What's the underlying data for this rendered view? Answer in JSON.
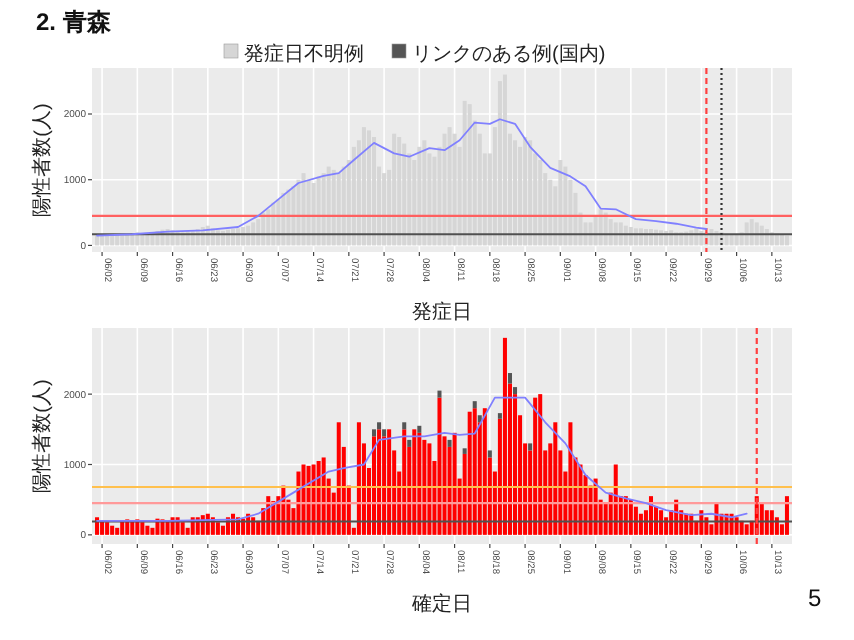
{
  "chart_data": [
    {
      "type": "bar",
      "title": "2. 青森",
      "xlabel": "発症日",
      "ylabel": "陽性者数(人)",
      "legend": "top",
      "grid": true,
      "x": [
        "--06-01",
        "--06-02",
        "--06-03",
        "--06-04",
        "--06-05",
        "--06-06",
        "--06-07",
        "--06-08",
        "--06-09",
        "--06-10",
        "--06-11",
        "--06-12",
        "--06-13",
        "--06-14",
        "--06-15",
        "--06-16",
        "--06-17",
        "--06-18",
        "--06-19",
        "--06-20",
        "--06-21",
        "--06-22",
        "--06-23",
        "--06-24",
        "--06-25",
        "--06-26",
        "--06-27",
        "--06-28",
        "--06-29",
        "--06-30",
        "--07-01",
        "--07-02",
        "--07-03",
        "--07-04",
        "--07-05",
        "--07-06",
        "--07-07",
        "--07-08",
        "--07-09",
        "--07-10",
        "--07-11",
        "--07-12",
        "--07-13",
        "--07-14",
        "--07-15",
        "--07-16",
        "--07-17",
        "--07-18",
        "--07-19",
        "--07-20",
        "--07-21",
        "--07-22",
        "--07-23",
        "--07-24",
        "--07-25",
        "--07-26",
        "--07-27",
        "--07-28",
        "--07-29",
        "--07-30",
        "--07-31",
        "--08-01",
        "--08-02",
        "--08-03",
        "--08-04",
        "--08-05",
        "--08-06",
        "--08-07",
        "--08-08",
        "--08-09",
        "--08-10",
        "--08-11",
        "--08-12",
        "--08-13",
        "--08-14",
        "--08-15",
        "--08-16",
        "--08-17",
        "--08-18",
        "--08-19",
        "--08-20",
        "--08-21",
        "--08-22",
        "--08-23",
        "--08-24",
        "--08-25",
        "--08-26",
        "--08-27",
        "--08-28",
        "--08-29",
        "--08-30",
        "--08-31",
        "--09-01",
        "--09-02",
        "--09-03",
        "--09-04",
        "--09-05",
        "--09-06",
        "--09-07",
        "--09-08",
        "--09-09",
        "--09-10",
        "--09-11",
        "--09-12",
        "--09-13",
        "--09-14",
        "--09-15",
        "--09-16",
        "--09-17",
        "--09-18",
        "--09-19",
        "--09-20",
        "--09-21",
        "--09-22",
        "--09-23",
        "--09-24",
        "--09-25",
        "--09-26",
        "--09-27",
        "--09-28",
        "--09-29",
        "--09-30",
        "--10-01",
        "--10-02",
        "--10-03",
        "--10-04",
        "--10-05",
        "--10-06",
        "--10-07",
        "--10-08",
        "--10-09",
        "--10-10",
        "--10-11",
        "--10-12",
        "--10-13",
        "--10-14",
        "--10-15",
        "--10-16"
      ],
      "series": [
        {
          "name": "発症日不明例",
          "color": "#d6d6d6",
          "values": [
            150,
            170,
            160,
            180,
            170,
            150,
            160,
            180,
            200,
            170,
            180,
            200,
            220,
            240,
            250,
            230,
            210,
            200,
            220,
            230,
            250,
            280,
            300,
            260,
            230,
            220,
            240,
            250,
            260,
            280,
            300,
            350,
            400,
            500,
            550,
            650,
            700,
            800,
            850,
            900,
            1000,
            1100,
            1000,
            950,
            1050,
            1100,
            1200,
            1150,
            1100,
            1200,
            1300,
            1500,
            1600,
            1800,
            1750,
            1650,
            1200,
            1100,
            1150,
            1700,
            1650,
            1550,
            1400,
            1300,
            1500,
            1600,
            1400,
            1350,
            1500,
            1700,
            1800,
            1700,
            1500,
            2200,
            2150,
            1900,
            1700,
            1400,
            1400,
            1800,
            2500,
            2600,
            1700,
            1600,
            1500,
            1650,
            1600,
            1400,
            1300,
            1100,
            1000,
            900,
            1300,
            1200,
            1000,
            800,
            500,
            350,
            350,
            450,
            550,
            500,
            400,
            350,
            350,
            300,
            280,
            260,
            260,
            250,
            250,
            240,
            230,
            220,
            230,
            200,
            200,
            210,
            230,
            260,
            220,
            200,
            250,
            220,
            200,
            180,
            160,
            170,
            200,
            350,
            400,
            350,
            300,
            250,
            200,
            180,
            160,
            150
          ]
        },
        {
          "type": "line",
          "color": "#8080ff",
          "x": [
            "--06-01",
            "--06-08",
            "--06-15",
            "--06-22",
            "--06-29",
            "--07-03",
            "--07-07",
            "--07-11",
            "--07-16",
            "--07-19",
            "--07-22",
            "--07-26",
            "--07-30",
            "--08-02",
            "--08-06",
            "--08-09",
            "--08-12",
            "--08-15",
            "--08-18",
            "--08-20",
            "--08-23",
            "--08-26",
            "--08-30",
            "--09-03",
            "--09-06",
            "--09-09",
            "--09-12",
            "--09-16",
            "--09-20",
            "--09-24",
            "--09-28",
            "--09-30"
          ],
          "values": [
            150,
            170,
            210,
            230,
            280,
            450,
            700,
            950,
            1060,
            1100,
            1300,
            1560,
            1400,
            1350,
            1480,
            1450,
            1600,
            1870,
            1850,
            1920,
            1850,
            1500,
            1180,
            1050,
            900,
            560,
            550,
            400,
            370,
            330,
            270,
            250
          ]
        }
      ],
      "xlim": [
        "--05-31",
        "--10-17"
      ],
      "xticks": [
        {
          "value": "--06-02",
          "label": "06/02"
        },
        {
          "value": "--06-09",
          "label": "06/09"
        },
        {
          "value": "--06-16",
          "label": "06/16"
        },
        {
          "value": "--06-23",
          "label": "06/23"
        },
        {
          "value": "--06-30",
          "label": "06/30"
        },
        {
          "value": "--07-07",
          "label": "07/07"
        },
        {
          "value": "--07-14",
          "label": "07/14"
        },
        {
          "value": "--07-21",
          "label": "07/21"
        },
        {
          "value": "--07-28",
          "label": "07/28"
        },
        {
          "value": "--08-04",
          "label": "08/04"
        },
        {
          "value": "--08-11",
          "label": "08/11"
        },
        {
          "value": "--08-18",
          "label": "08/18"
        },
        {
          "value": "--08-25",
          "label": "08/25"
        },
        {
          "value": "--09-01",
          "label": "09/01"
        },
        {
          "value": "--09-08",
          "label": "09/08"
        },
        {
          "value": "--09-15",
          "label": "09/15"
        },
        {
          "value": "--09-22",
          "label": "09/22"
        },
        {
          "value": "--09-29",
          "label": "09/29"
        },
        {
          "value": "--10-06",
          "label": "10/06"
        },
        {
          "value": "--10-13",
          "label": "10/13"
        }
      ],
      "ylim": [
        -100,
        2700
      ],
      "yticks": [
        0,
        1000,
        2000
      ],
      "ref_lines": [
        {
          "axis": "y",
          "value": 450,
          "color": "#ff6060"
        },
        {
          "axis": "y",
          "value": 170,
          "color": "#505050"
        },
        {
          "axis": "x",
          "value": "--09-30",
          "color": "#ff4040",
          "line_style": "dashed"
        },
        {
          "axis": "x",
          "value": "--10-03",
          "color": "#333333",
          "line_style": "dotted"
        }
      ]
    },
    {
      "type": "bar",
      "stacked": true,
      "xlabel": "確定日",
      "ylabel": "陽性者数(人)",
      "grid": true,
      "x": [
        "--06-01",
        "--06-02",
        "--06-03",
        "--06-04",
        "--06-05",
        "--06-06",
        "--06-07",
        "--06-08",
        "--06-09",
        "--06-10",
        "--06-11",
        "--06-12",
        "--06-13",
        "--06-14",
        "--06-15",
        "--06-16",
        "--06-17",
        "--06-18",
        "--06-19",
        "--06-20",
        "--06-21",
        "--06-22",
        "--06-23",
        "--06-24",
        "--06-25",
        "--06-26",
        "--06-27",
        "--06-28",
        "--06-29",
        "--06-30",
        "--07-01",
        "--07-02",
        "--07-03",
        "--07-04",
        "--07-05",
        "--07-06",
        "--07-07",
        "--07-08",
        "--07-09",
        "--07-10",
        "--07-11",
        "--07-12",
        "--07-13",
        "--07-14",
        "--07-15",
        "--07-16",
        "--07-17",
        "--07-18",
        "--07-19",
        "--07-20",
        "--07-21",
        "--07-22",
        "--07-23",
        "--07-24",
        "--07-25",
        "--07-26",
        "--07-27",
        "--07-28",
        "--07-29",
        "--07-30",
        "--07-31",
        "--08-01",
        "--08-02",
        "--08-03",
        "--08-04",
        "--08-05",
        "--08-06",
        "--08-07",
        "--08-08",
        "--08-09",
        "--08-10",
        "--08-11",
        "--08-12",
        "--08-13",
        "--08-14",
        "--08-15",
        "--08-16",
        "--08-17",
        "--08-18",
        "--08-19",
        "--08-20",
        "--08-21",
        "--08-22",
        "--08-23",
        "--08-24",
        "--08-25",
        "--08-26",
        "--08-27",
        "--08-28",
        "--08-29",
        "--08-30",
        "--08-31",
        "--09-01",
        "--09-02",
        "--09-03",
        "--09-04",
        "--09-05",
        "--09-06",
        "--09-07",
        "--09-08",
        "--09-09",
        "--09-10",
        "--09-11",
        "--09-12",
        "--09-13",
        "--09-14",
        "--09-15",
        "--09-16",
        "--09-17",
        "--09-18",
        "--09-19",
        "--09-20",
        "--09-21",
        "--09-22",
        "--09-23",
        "--09-24",
        "--09-25",
        "--09-26",
        "--09-27",
        "--09-28",
        "--09-29",
        "--09-30",
        "--10-01",
        "--10-02",
        "--10-03",
        "--10-04",
        "--10-05",
        "--10-06",
        "--10-07",
        "--10-08",
        "--10-09",
        "--10-10",
        "--10-11",
        "--10-12",
        "--10-13",
        "--10-14",
        "--10-15",
        "--10-16"
      ],
      "series": [
        {
          "color": "#ff0000",
          "values": [
            250,
            200,
            180,
            130,
            100,
            200,
            220,
            200,
            220,
            180,
            130,
            100,
            230,
            220,
            200,
            250,
            250,
            180,
            100,
            250,
            250,
            280,
            300,
            250,
            180,
            130,
            250,
            300,
            250,
            230,
            300,
            250,
            200,
            380,
            550,
            480,
            550,
            700,
            500,
            380,
            900,
            1000,
            980,
            1000,
            1050,
            1100,
            800,
            600,
            1600,
            1250,
            700,
            100,
            1600,
            1300,
            950,
            1400,
            1500,
            1400,
            1500,
            1200,
            900,
            1500,
            1250,
            1500,
            1450,
            1350,
            1300,
            1050,
            1950,
            1400,
            1250,
            1450,
            800,
            1150,
            1750,
            1800,
            1600,
            1800,
            1100,
            900,
            1650,
            2800,
            2150,
            2000,
            1700,
            1300,
            1200,
            1950,
            2000,
            1200,
            1300,
            1600,
            1200,
            900,
            1600,
            1100,
            1000,
            850,
            700,
            800,
            500,
            450,
            600,
            1000,
            550,
            550,
            500,
            400,
            300,
            350,
            550,
            400,
            350,
            250,
            350,
            500,
            350,
            300,
            300,
            200,
            350,
            250,
            150,
            450,
            300,
            300,
            300,
            250,
            200,
            150,
            200,
            550,
            450,
            350,
            350,
            250,
            150,
            550
          ]
        },
        {
          "name": "リンクのある例(国内)",
          "color": "#555555",
          "values": [
            0,
            0,
            0,
            0,
            0,
            0,
            0,
            0,
            0,
            0,
            0,
            0,
            0,
            0,
            0,
            0,
            0,
            0,
            0,
            0,
            0,
            0,
            0,
            0,
            0,
            0,
            0,
            0,
            0,
            0,
            0,
            0,
            0,
            0,
            0,
            0,
            0,
            0,
            0,
            0,
            0,
            0,
            0,
            0,
            0,
            0,
            0,
            0,
            0,
            0,
            0,
            0,
            0,
            0,
            0,
            100,
            100,
            100,
            0,
            0,
            0,
            100,
            100,
            0,
            100,
            0,
            0,
            0,
            100,
            0,
            100,
            0,
            0,
            80,
            0,
            100,
            100,
            0,
            100,
            0,
            80,
            0,
            150,
            100,
            0,
            0,
            100,
            0,
            0,
            0,
            0,
            0,
            0,
            0,
            0,
            0,
            0,
            0,
            0,
            0,
            0,
            0,
            0,
            0,
            0,
            0,
            0,
            0,
            0,
            0,
            0,
            0,
            0,
            0,
            0,
            0,
            0,
            0,
            0,
            0,
            0,
            0,
            0,
            0,
            0,
            0,
            0,
            0,
            0,
            0,
            0,
            0,
            0,
            0,
            0,
            0,
            0,
            0
          ]
        },
        {
          "type": "line",
          "color": "#8080ff",
          "x": [
            "--06-01",
            "--06-15",
            "--06-29",
            "--07-03",
            "--07-10",
            "--07-17",
            "--07-20",
            "--07-24",
            "--07-27",
            "--08-01",
            "--08-05",
            "--08-09",
            "--08-12",
            "--08-15",
            "--08-19",
            "--08-22",
            "--08-25",
            "--08-29",
            "--09-02",
            "--09-06",
            "--09-10",
            "--09-14",
            "--09-18",
            "--09-22",
            "--09-27",
            "--10-01",
            "--10-05",
            "--10-08"
          ],
          "values": [
            200,
            200,
            220,
            300,
            600,
            900,
            950,
            1000,
            1350,
            1400,
            1400,
            1450,
            1420,
            1440,
            1950,
            1950,
            1950,
            1600,
            1300,
            850,
            600,
            520,
            450,
            350,
            280,
            300,
            250,
            300
          ]
        }
      ],
      "xlim": [
        "--05-31",
        "--10-17"
      ],
      "xticks": [
        {
          "value": "--06-02",
          "label": "06/02"
        },
        {
          "value": "--06-09",
          "label": "06/09"
        },
        {
          "value": "--06-16",
          "label": "06/16"
        },
        {
          "value": "--06-23",
          "label": "06/23"
        },
        {
          "value": "--06-30",
          "label": "06/30"
        },
        {
          "value": "--07-07",
          "label": "07/07"
        },
        {
          "value": "--07-14",
          "label": "07/14"
        },
        {
          "value": "--07-21",
          "label": "07/21"
        },
        {
          "value": "--07-28",
          "label": "07/28"
        },
        {
          "value": "--08-04",
          "label": "08/04"
        },
        {
          "value": "--08-11",
          "label": "08/11"
        },
        {
          "value": "--08-18",
          "label": "08/18"
        },
        {
          "value": "--08-25",
          "label": "08/25"
        },
        {
          "value": "--09-01",
          "label": "09/01"
        },
        {
          "value": "--09-08",
          "label": "09/08"
        },
        {
          "value": "--09-15",
          "label": "09/15"
        },
        {
          "value": "--09-22",
          "label": "09/22"
        },
        {
          "value": "--09-29",
          "label": "09/29"
        },
        {
          "value": "--10-06",
          "label": "10/06"
        },
        {
          "value": "--10-13",
          "label": "10/13"
        }
      ],
      "ylim": [
        -130,
        2940
      ],
      "yticks": [
        0,
        1000,
        2000
      ],
      "ref_lines": [
        {
          "axis": "y",
          "value": 680,
          "color": "#ffc04d"
        },
        {
          "axis": "y",
          "value": 450,
          "color": "#ff9999"
        },
        {
          "axis": "y",
          "value": 190,
          "color": "#505050"
        },
        {
          "axis": "x",
          "value": "--10-10",
          "color": "#ff4040",
          "line_style": "dashed"
        }
      ],
      "annotations": [
        "5"
      ]
    }
  ]
}
